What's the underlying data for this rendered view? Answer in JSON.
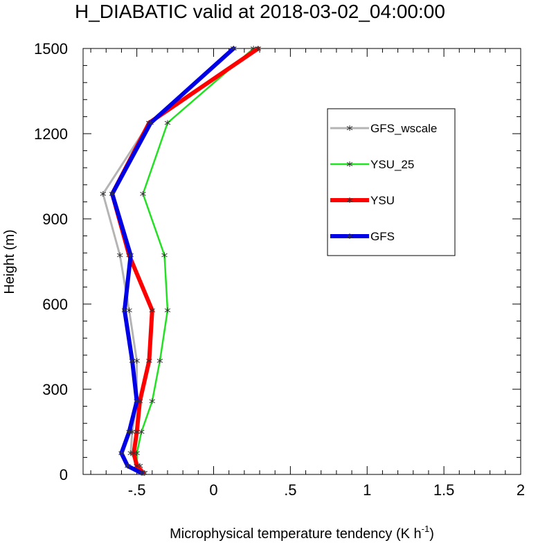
{
  "chart_data": {
    "type": "line",
    "title": "H_DIABATIC valid at 2018-03-02_04:00:00",
    "xlabel": "Microphysical temperature tendency (K h",
    "xlabel_sup": "-1",
    "xlabel_end": ")",
    "ylabel": "Height (m)",
    "xlim": [
      -0.85,
      2.0
    ],
    "ylim": [
      0,
      1500
    ],
    "x_ticks": [
      -0.5,
      0,
      0.5,
      1,
      1.5,
      2
    ],
    "x_tick_labels": [
      "-.5",
      "0",
      ".5",
      "1",
      "1.5",
      "2"
    ],
    "y_ticks": [
      0,
      300,
      600,
      900,
      1200,
      1500
    ],
    "y_tick_labels": [
      "0",
      "300",
      "600",
      "900",
      "1200",
      "1500"
    ],
    "grid": false,
    "legend_position": "top-right",
    "series": [
      {
        "name": "GFS_wscale",
        "color": "#b4b4b4",
        "points": [
          [
            -0.45,
            5
          ],
          [
            -0.48,
            30
          ],
          [
            -0.54,
            75
          ],
          [
            -0.53,
            150
          ],
          [
            -0.5,
            258
          ],
          [
            -0.5,
            400
          ],
          [
            -0.55,
            578
          ],
          [
            -0.61,
            772
          ],
          [
            -0.72,
            988
          ],
          [
            -0.42,
            1238
          ],
          [
            0.13,
            1500
          ]
        ]
      },
      {
        "name": "YSU_25",
        "color": "#22e022",
        "points": [
          [
            -0.45,
            5
          ],
          [
            -0.5,
            30
          ],
          [
            -0.5,
            75
          ],
          [
            -0.47,
            150
          ],
          [
            -0.4,
            258
          ],
          [
            -0.35,
            400
          ],
          [
            -0.3,
            578
          ],
          [
            -0.32,
            772
          ],
          [
            -0.46,
            988
          ],
          [
            -0.3,
            1238
          ],
          [
            0.26,
            1500
          ]
        ]
      },
      {
        "name": "YSU",
        "color": "#ff0000",
        "points": [
          [
            -0.46,
            5
          ],
          [
            -0.5,
            30
          ],
          [
            -0.52,
            75
          ],
          [
            -0.5,
            150
          ],
          [
            -0.48,
            258
          ],
          [
            -0.42,
            400
          ],
          [
            -0.4,
            578
          ],
          [
            -0.55,
            772
          ],
          [
            -0.66,
            988
          ],
          [
            -0.42,
            1238
          ],
          [
            0.29,
            1500
          ]
        ]
      },
      {
        "name": "GFS",
        "color": "#0000e6",
        "points": [
          [
            -0.47,
            5
          ],
          [
            -0.56,
            30
          ],
          [
            -0.6,
            75
          ],
          [
            -0.55,
            150
          ],
          [
            -0.5,
            258
          ],
          [
            -0.53,
            400
          ],
          [
            -0.58,
            578
          ],
          [
            -0.54,
            772
          ],
          [
            -0.66,
            988
          ],
          [
            -0.41,
            1238
          ],
          [
            0.13,
            1500
          ]
        ]
      }
    ]
  }
}
